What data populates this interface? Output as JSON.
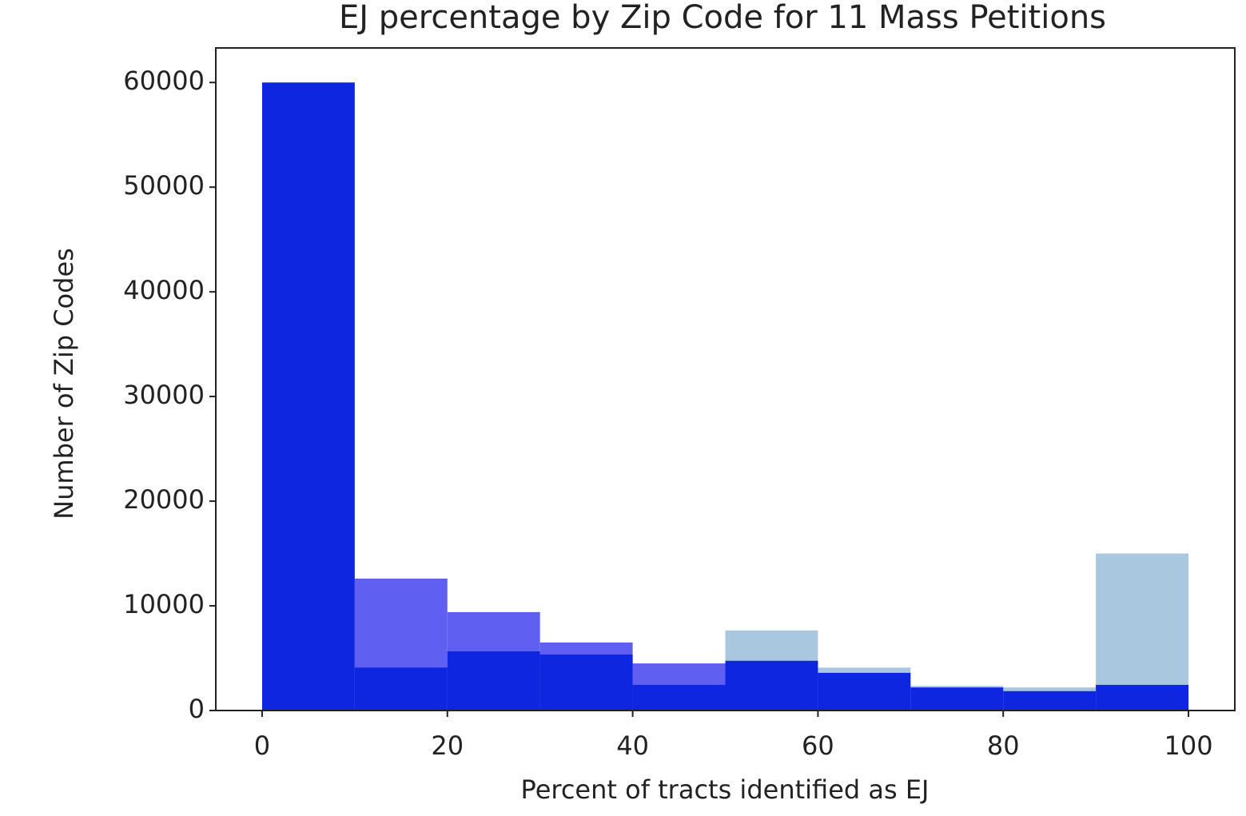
{
  "chart_data": {
    "type": "histogram",
    "title": "EJ percentage by Zip Code for 11 Mass Petitions",
    "x_label": "Percent of tracts identified as EJ",
    "y_label": "Number of Zip Codes",
    "bins": [
      0,
      10,
      20,
      30,
      40,
      50,
      60,
      70,
      80,
      90,
      100
    ],
    "series": [
      {
        "color": "#a9c8e0",
        "values": [
          null,
          null,
          null,
          null,
          null,
          7650,
          4100,
          2350,
          2200,
          15000
        ]
      },
      {
        "color": "#5f5ff2",
        "values": [
          null,
          12600,
          9400,
          6500,
          4500,
          null,
          null,
          null,
          null,
          null
        ]
      },
      {
        "color": "#0e26e0",
        "values": [
          60000,
          4100,
          5650,
          5350,
          2450,
          4750,
          3600,
          2200,
          1850,
          2450
        ]
      }
    ],
    "xlim": [
      -5,
      105
    ],
    "xticks": [
      0,
      20,
      40,
      60,
      80,
      100
    ],
    "ylim": [
      0,
      63300
    ],
    "yticks": [
      0,
      10000,
      20000,
      30000,
      40000,
      50000,
      60000
    ]
  }
}
